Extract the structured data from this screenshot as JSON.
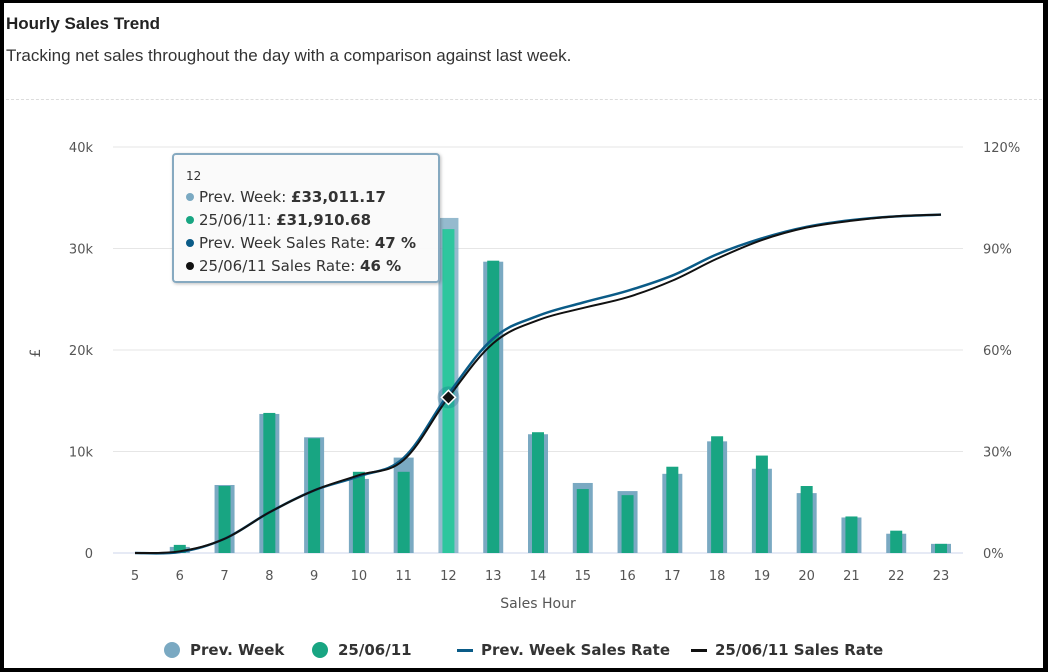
{
  "header": {
    "title": "Hourly Sales Trend",
    "subtitle": "Tracking net sales throughout the day with a comparison against last week."
  },
  "colors": {
    "prev_week_bar": "#7aa9c2",
    "current_bar": "#18a582",
    "current_bar_highlight": "#2ec69e",
    "prev_week_rate_line": "#0a5b87",
    "current_rate_line": "#111111",
    "gridline": "#e6e6e6"
  },
  "tooltip": {
    "header": "12",
    "rows": [
      {
        "label": "Prev. Week: ",
        "value": "£33,011.17",
        "color": "#7aa9c2"
      },
      {
        "label": "25/06/11: ",
        "value": "£31,910.68",
        "color": "#18a582"
      },
      {
        "label": "Prev. Week Sales Rate: ",
        "value": "47 %",
        "color": "#0a5b87"
      },
      {
        "label": "25/06/11 Sales Rate: ",
        "value": "46 %",
        "color": "#111111"
      }
    ]
  },
  "legend": [
    {
      "label": "Prev. Week",
      "symbol": "circle",
      "color": "#7aa9c2"
    },
    {
      "label": "25/06/11",
      "symbol": "circle",
      "color": "#18a582"
    },
    {
      "label": "Prev. Week Sales Rate",
      "symbol": "line",
      "color": "#0a5b87"
    },
    {
      "label": "25/06/11 Sales Rate",
      "symbol": "line",
      "color": "#111111"
    }
  ],
  "chart_data": {
    "type": "bar",
    "title": "Hourly Sales Trend",
    "xlabel": "Sales Hour",
    "ylabel": "£",
    "y2label": "",
    "categories": [
      "5",
      "6",
      "7",
      "8",
      "9",
      "10",
      "11",
      "12",
      "13",
      "14",
      "15",
      "16",
      "17",
      "18",
      "19",
      "20",
      "21",
      "22",
      "23"
    ],
    "ylim": [
      0,
      40000
    ],
    "yticks": [
      "0",
      "10k",
      "20k",
      "30k",
      "40k"
    ],
    "y2lim": [
      0,
      120
    ],
    "y2ticks": [
      "0%",
      "30%",
      "60%",
      "90%",
      "120%"
    ],
    "grid": true,
    "legend_position": "bottom",
    "highlighted_category": "12",
    "series": [
      {
        "name": "Prev. Week",
        "type": "bar",
        "axis": "left",
        "values": [
          0,
          600,
          6700,
          13700,
          11400,
          7300,
          9400,
          33011.17,
          28700,
          11700,
          6900,
          6100,
          7800,
          11000,
          8300,
          5900,
          3500,
          1900,
          900
        ]
      },
      {
        "name": "25/06/11",
        "type": "bar",
        "axis": "left",
        "values": [
          0,
          800,
          6600,
          13800,
          11300,
          8000,
          8000,
          31910.68,
          28800,
          11900,
          6300,
          5700,
          8500,
          11500,
          9600,
          6600,
          3600,
          2200,
          900
        ]
      },
      {
        "name": "Prev. Week Sales Rate",
        "type": "line",
        "axis": "right",
        "values": [
          0,
          0.3,
          4.2,
          12.0,
          18.5,
          22.7,
          28.1,
          47,
          63.4,
          70.1,
          74.0,
          77.5,
          82.0,
          88.3,
          93.0,
          96.4,
          98.4,
          99.5,
          100
        ]
      },
      {
        "name": "25/06/11 Sales Rate",
        "type": "line",
        "axis": "right",
        "values": [
          0,
          0.5,
          4.2,
          12.0,
          18.5,
          23.0,
          27.5,
          46,
          62.0,
          68.8,
          72.4,
          75.6,
          80.5,
          87.0,
          92.5,
          96.2,
          98.2,
          99.5,
          100
        ]
      }
    ]
  }
}
